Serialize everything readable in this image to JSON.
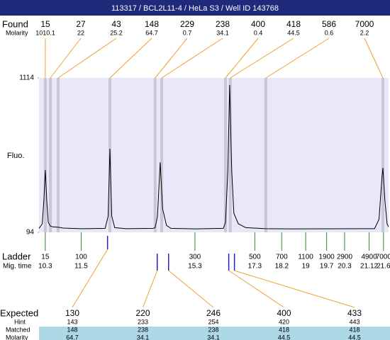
{
  "header": {
    "title": "113317 / BCL2L11-4 / HeLa S3 / Well ID 143768"
  },
  "labels": {
    "found": "Found",
    "found_molarity": "Molarity",
    "fluo": "Fluo.",
    "ladder": "Ladder",
    "mig_time": "Mig. time",
    "expected": "Expected",
    "hint": "Hint",
    "matched": "Matched",
    "expected_molarity": "Molarity"
  },
  "chart_data": {
    "type": "electropherogram",
    "x": [
      10.09,
      10.2,
      10.25,
      10.3,
      10.35,
      10.4,
      10.47,
      10.55,
      10.73,
      10.9,
      11.5,
      12.3,
      12.4,
      12.46,
      12.52,
      12.62,
      13.0,
      13.9,
      13.97,
      14.05,
      14.14,
      14.22,
      14.35,
      14.5,
      15.3,
      16.25,
      16.32,
      16.4,
      16.46,
      16.53,
      16.6,
      16.75,
      17.0,
      17.67,
      18.5,
      21.3,
      21.45,
      21.55,
      21.58,
      21.65,
      21.72,
      21.77
    ],
    "values": [
      120,
      150,
      300,
      506,
      300,
      160,
      135,
      130,
      128,
      122,
      118,
      120,
      200,
      646,
      200,
      125,
      118,
      120,
      125,
      200,
      557,
      250,
      140,
      120,
      117,
      120,
      160,
      500,
      1067,
      500,
      220,
      150,
      125,
      118,
      117,
      118,
      180,
      460,
      520,
      300,
      150,
      130
    ],
    "xlim": [
      10.09,
      21.77
    ],
    "ylim": [
      94,
      1114
    ],
    "yticks": [
      94,
      1114
    ],
    "trace_color": "#000000",
    "plot_background": "#e8e8f8",
    "found": {
      "sizes": [
        15,
        27,
        43,
        148,
        229,
        238,
        400,
        418,
        586,
        7000
      ],
      "molarity": [
        1010.1,
        22,
        25.2,
        64.7,
        0.7,
        34.1,
        0.4,
        44.5,
        0.6,
        2.2
      ],
      "times": [
        10.3,
        10.47,
        10.73,
        12.46,
        13.97,
        14.19,
        16.32,
        16.48,
        17.67,
        21.58
      ],
      "color": "#c8c8d4",
      "link_color": "#f0a030"
    },
    "ladder": {
      "sizes": [
        15,
        100,
        300,
        500,
        700,
        1100,
        1900,
        2900,
        4900,
        7000
      ],
      "times": [
        10.3,
        11.5,
        15.3,
        17.3,
        18.2,
        19,
        19.7,
        20.3,
        21.12,
        21.6
      ],
      "color": "#2a8a2a"
    },
    "expected": {
      "sizes": [
        130,
        220,
        246,
        400,
        433
      ],
      "hint": [
        143,
        233,
        254,
        420,
        443
      ],
      "matched": [
        148,
        238,
        238,
        418,
        418
      ],
      "molarity": [
        64.7,
        34.1,
        34.1,
        44.5,
        44.5
      ],
      "times": [
        12.38,
        14.04,
        14.42,
        16.43,
        16.62
      ],
      "color": "#2020c0",
      "link_color": "#f0a030",
      "row_color": "#add8e6"
    }
  }
}
